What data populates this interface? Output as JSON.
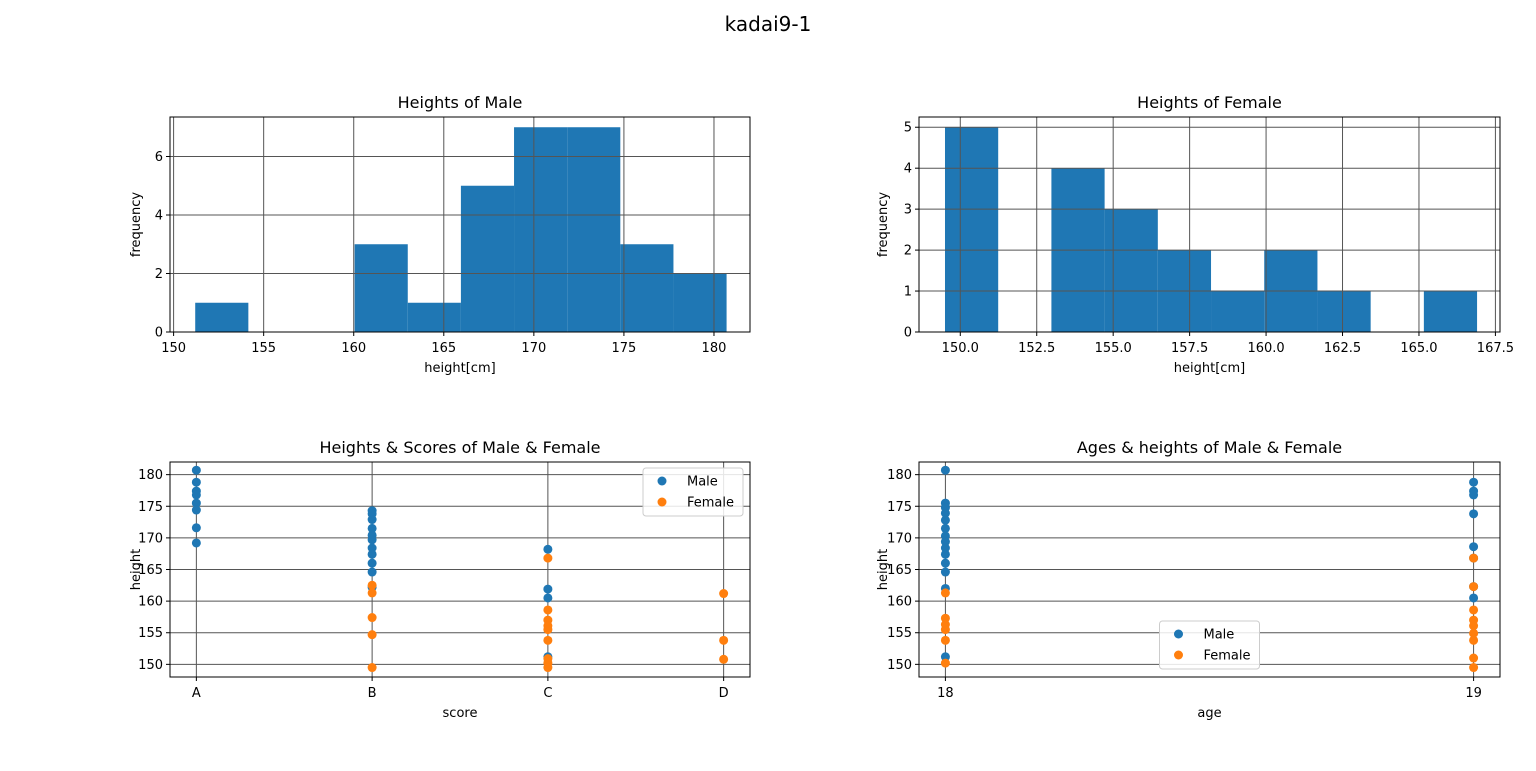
{
  "figure": {
    "suptitle": "kadai9-1"
  },
  "colors": {
    "male": "#1f77b4",
    "female": "#ff7f0e",
    "grid": "#555555",
    "axes": "#000000"
  },
  "chart_data": [
    {
      "type": "bar",
      "title": "Heights of Male",
      "xlabel": "height[cm]",
      "ylabel": "frequency",
      "xlim": [
        149.8,
        182.0
      ],
      "ylim": [
        0,
        7.35
      ],
      "xticks": [
        150,
        155,
        160,
        165,
        170,
        175,
        180
      ],
      "xtick_labels": [
        "150",
        "155",
        "160",
        "165",
        "170",
        "175",
        "180"
      ],
      "yticks": [
        0,
        2,
        4,
        6
      ],
      "ytick_labels": [
        "0",
        "2",
        "4",
        "6"
      ],
      "grid": true,
      "bins": [
        {
          "lo": 151.2,
          "hi": 154.15,
          "count": 1
        },
        {
          "lo": 154.15,
          "hi": 157.1,
          "count": 0
        },
        {
          "lo": 157.1,
          "hi": 160.05,
          "count": 0
        },
        {
          "lo": 160.05,
          "hi": 163.0,
          "count": 3
        },
        {
          "lo": 163.0,
          "hi": 165.95,
          "count": 1
        },
        {
          "lo": 165.95,
          "hi": 168.9,
          "count": 5
        },
        {
          "lo": 168.9,
          "hi": 171.85,
          "count": 7
        },
        {
          "lo": 171.85,
          "hi": 174.8,
          "count": 7
        },
        {
          "lo": 174.8,
          "hi": 177.75,
          "count": 3
        },
        {
          "lo": 177.75,
          "hi": 180.7,
          "count": 2
        }
      ]
    },
    {
      "type": "bar",
      "title": "Heights of Female",
      "xlabel": "height[cm]",
      "ylabel": "frequency",
      "xlim": [
        148.65,
        167.65
      ],
      "ylim": [
        0,
        5.25
      ],
      "xticks": [
        150.0,
        152.5,
        155.0,
        157.5,
        160.0,
        162.5,
        165.0,
        167.5
      ],
      "xtick_labels": [
        "150.0",
        "152.5",
        "155.0",
        "157.5",
        "160.0",
        "162.5",
        "165.0",
        "167.5"
      ],
      "yticks": [
        0,
        1,
        2,
        3,
        4,
        5
      ],
      "ytick_labels": [
        "0",
        "1",
        "2",
        "3",
        "4",
        "5"
      ],
      "grid": true,
      "bins": [
        {
          "lo": 149.5,
          "hi": 151.24,
          "count": 5
        },
        {
          "lo": 151.24,
          "hi": 152.98,
          "count": 0
        },
        {
          "lo": 152.98,
          "hi": 154.72,
          "count": 4
        },
        {
          "lo": 154.72,
          "hi": 156.46,
          "count": 3
        },
        {
          "lo": 156.46,
          "hi": 158.2,
          "count": 2
        },
        {
          "lo": 158.2,
          "hi": 159.94,
          "count": 1
        },
        {
          "lo": 159.94,
          "hi": 161.68,
          "count": 2
        },
        {
          "lo": 161.68,
          "hi": 163.42,
          "count": 1
        },
        {
          "lo": 163.42,
          "hi": 165.16,
          "count": 0
        },
        {
          "lo": 165.16,
          "hi": 166.9,
          "count": 1
        }
      ]
    },
    {
      "type": "scatter",
      "title": "Heights & Scores of Male & Female",
      "xlabel": "score",
      "ylabel": "height",
      "xlim": [
        -0.15,
        3.15
      ],
      "ylim": [
        148.0,
        182.0
      ],
      "categories": [
        "A",
        "B",
        "C",
        "D"
      ],
      "yticks": [
        150,
        155,
        160,
        165,
        170,
        175,
        180
      ],
      "ytick_labels": [
        "150",
        "155",
        "160",
        "165",
        "170",
        "175",
        "180"
      ],
      "grid": true,
      "legend_position": "upper right",
      "series": [
        {
          "name": "Male",
          "color": "#1f77b4",
          "points": [
            [
              0,
              180.7
            ],
            [
              0,
              178.8
            ],
            [
              0,
              177.4
            ],
            [
              0,
              176.8
            ],
            [
              0,
              175.5
            ],
            [
              0,
              174.4
            ],
            [
              0,
              171.6
            ],
            [
              0,
              169.2
            ],
            [
              1,
              174.3
            ],
            [
              1,
              173.8
            ],
            [
              1,
              172.9
            ],
            [
              1,
              171.5
            ],
            [
              1,
              170.4
            ],
            [
              1,
              169.7
            ],
            [
              1,
              168.4
            ],
            [
              1,
              167.4
            ],
            [
              1,
              166.0
            ],
            [
              1,
              164.6
            ],
            [
              1,
              162.2
            ],
            [
              2,
              168.2
            ],
            [
              2,
              161.9
            ],
            [
              2,
              160.5
            ],
            [
              2,
              151.2
            ]
          ]
        },
        {
          "name": "Female",
          "color": "#ff7f0e",
          "points": [
            [
              1,
              162.5
            ],
            [
              1,
              161.3
            ],
            [
              1,
              157.4
            ],
            [
              1,
              154.7
            ],
            [
              1,
              149.5
            ],
            [
              2,
              166.8
            ],
            [
              2,
              158.6
            ],
            [
              2,
              157.0
            ],
            [
              2,
              156.1
            ],
            [
              2,
              155.5
            ],
            [
              2,
              153.8
            ],
            [
              2,
              150.9
            ],
            [
              2,
              150.2
            ],
            [
              2,
              149.5
            ],
            [
              3,
              161.2
            ],
            [
              3,
              153.8
            ],
            [
              3,
              150.8
            ]
          ]
        }
      ]
    },
    {
      "type": "scatter",
      "title": "Ages & heights of Male & Female",
      "xlabel": "age",
      "ylabel": "height",
      "xlim": [
        17.95,
        19.05
      ],
      "ylim": [
        148.0,
        182.0
      ],
      "xticks": [
        18,
        19
      ],
      "xtick_labels": [
        "18",
        "19"
      ],
      "yticks": [
        150,
        155,
        160,
        165,
        170,
        175,
        180
      ],
      "ytick_labels": [
        "150",
        "155",
        "160",
        "165",
        "170",
        "175",
        "180"
      ],
      "grid": true,
      "legend_position": "lower center",
      "series": [
        {
          "name": "Male",
          "color": "#1f77b4",
          "points": [
            [
              18,
              180.7
            ],
            [
              18,
              175.5
            ],
            [
              18,
              174.8
            ],
            [
              18,
              173.9
            ],
            [
              18,
              172.8
            ],
            [
              18,
              171.5
            ],
            [
              18,
              170.3
            ],
            [
              18,
              169.4
            ],
            [
              18,
              168.4
            ],
            [
              18,
              167.4
            ],
            [
              18,
              166.0
            ],
            [
              18,
              164.6
            ],
            [
              18,
              162.0
            ],
            [
              18,
              151.2
            ],
            [
              19,
              178.8
            ],
            [
              19,
              177.4
            ],
            [
              19,
              176.8
            ],
            [
              19,
              173.8
            ],
            [
              19,
              168.6
            ],
            [
              19,
              166.8
            ],
            [
              19,
              162.3
            ],
            [
              19,
              160.5
            ]
          ]
        },
        {
          "name": "Female",
          "color": "#ff7f0e",
          "points": [
            [
              18,
              161.3
            ],
            [
              18,
              157.3
            ],
            [
              18,
              156.3
            ],
            [
              18,
              155.5
            ],
            [
              18,
              153.8
            ],
            [
              18,
              150.2
            ],
            [
              19,
              166.8
            ],
            [
              19,
              162.3
            ],
            [
              19,
              158.6
            ],
            [
              19,
              157.0
            ],
            [
              19,
              156.1
            ],
            [
              19,
              154.9
            ],
            [
              19,
              153.8
            ],
            [
              19,
              151.0
            ],
            [
              19,
              149.5
            ]
          ]
        }
      ]
    }
  ]
}
